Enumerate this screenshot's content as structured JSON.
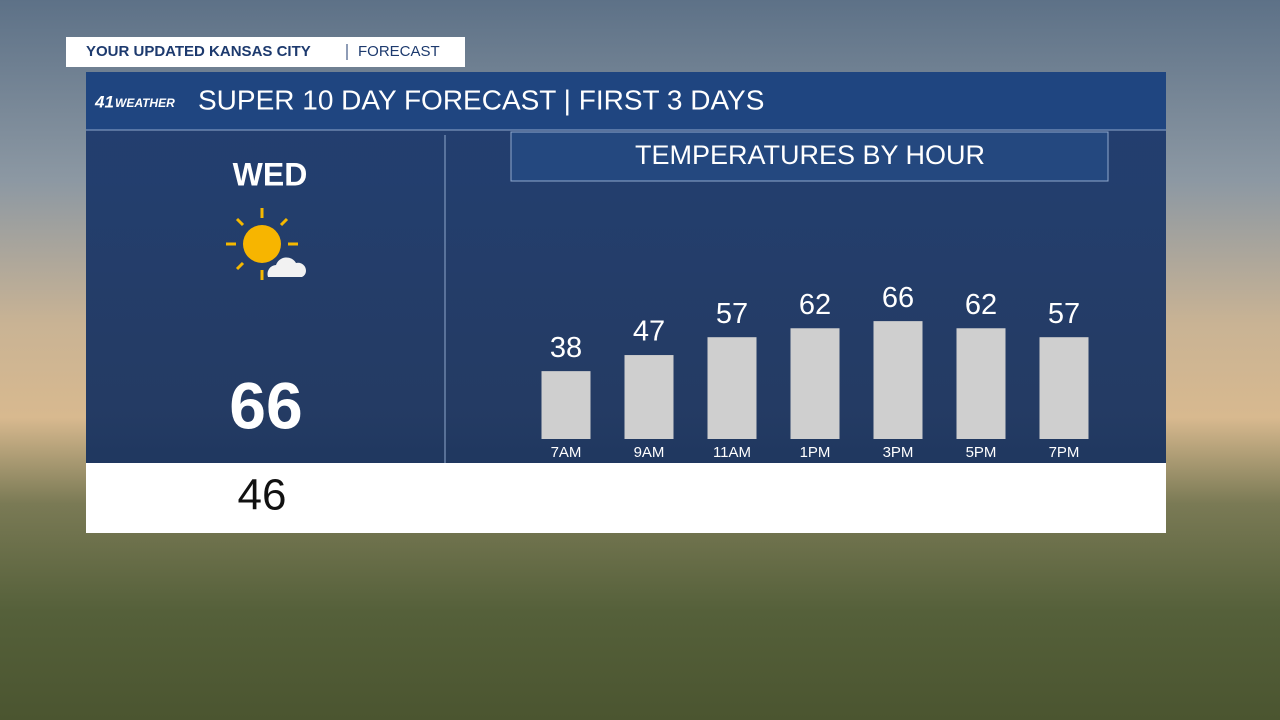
{
  "header": {
    "tab_title": "YOUR UPDATED KANSAS CITY",
    "tab_subtitle": "FORECAST",
    "logo_number": "41",
    "logo_text": "WEATHER",
    "title": "SUPER 10 DAY FORECAST | FIRST 3 DAYS"
  },
  "day": {
    "name": "WED",
    "high": 66,
    "low": 46
  },
  "chart_data": {
    "type": "bar",
    "title": "TEMPERATURES BY HOUR",
    "categories": [
      "7AM",
      "9AM",
      "11AM",
      "1PM",
      "3PM",
      "5PM",
      "7PM"
    ],
    "values": [
      38,
      47,
      57,
      62,
      66,
      62,
      57
    ],
    "color": "#cfcfcf"
  }
}
